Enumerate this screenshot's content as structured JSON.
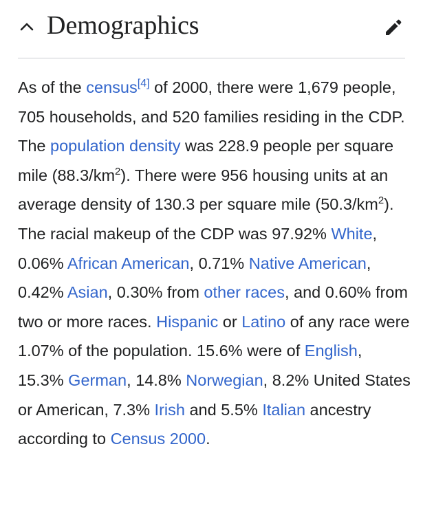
{
  "section": {
    "title": "Demographics",
    "toggle_icon": "chevron-up-icon",
    "edit_icon": "pencil-icon"
  },
  "colors": {
    "link": "#3366cc",
    "text": "#202122",
    "divider": "#c8ccd1",
    "icon": "#202122"
  },
  "paragraph": {
    "t1": "As of the ",
    "link_census": "census",
    "ref_4": "[4]",
    "t2": " of 2000, there were 1,679 people, 705 households, and 520 families residing in the CDP. The ",
    "link_population_density": "population density",
    "t3": " was 228.9 people per square mile (88.3/km",
    "sup_1": "2",
    "t4": "). There were 956 housing units at an average density of 130.3 per square mile (50.3/km",
    "sup_2": "2",
    "t5": "). The racial makeup of the CDP was 97.92% ",
    "link_white": "White",
    "t6": ", 0.06% ",
    "link_african_american": "African American",
    "t7": ", 0.71% ",
    "link_native_american": "Native American",
    "t8": ", 0.42% ",
    "link_asian": "Asian",
    "t9": ", 0.30% from ",
    "link_other_races": "other races",
    "t10": ", and 0.60% from two or more races. ",
    "link_hispanic": "Hispanic",
    "t11": " or ",
    "link_latino": "Latino",
    "t12": " of any race were 1.07% of the population. 15.6% were of ",
    "link_english": "English",
    "t13": ", 15.3% ",
    "link_german": "German",
    "t14": ", 14.8% ",
    "link_norwegian": "Norwegian",
    "t15": ", 8.2% United States or American, 7.3% ",
    "link_irish": "Irish",
    "t16": " and 5.5% ",
    "link_italian": "Italian",
    "t17": " ancestry according to ",
    "link_census_2000": "Census 2000",
    "t18": "."
  }
}
